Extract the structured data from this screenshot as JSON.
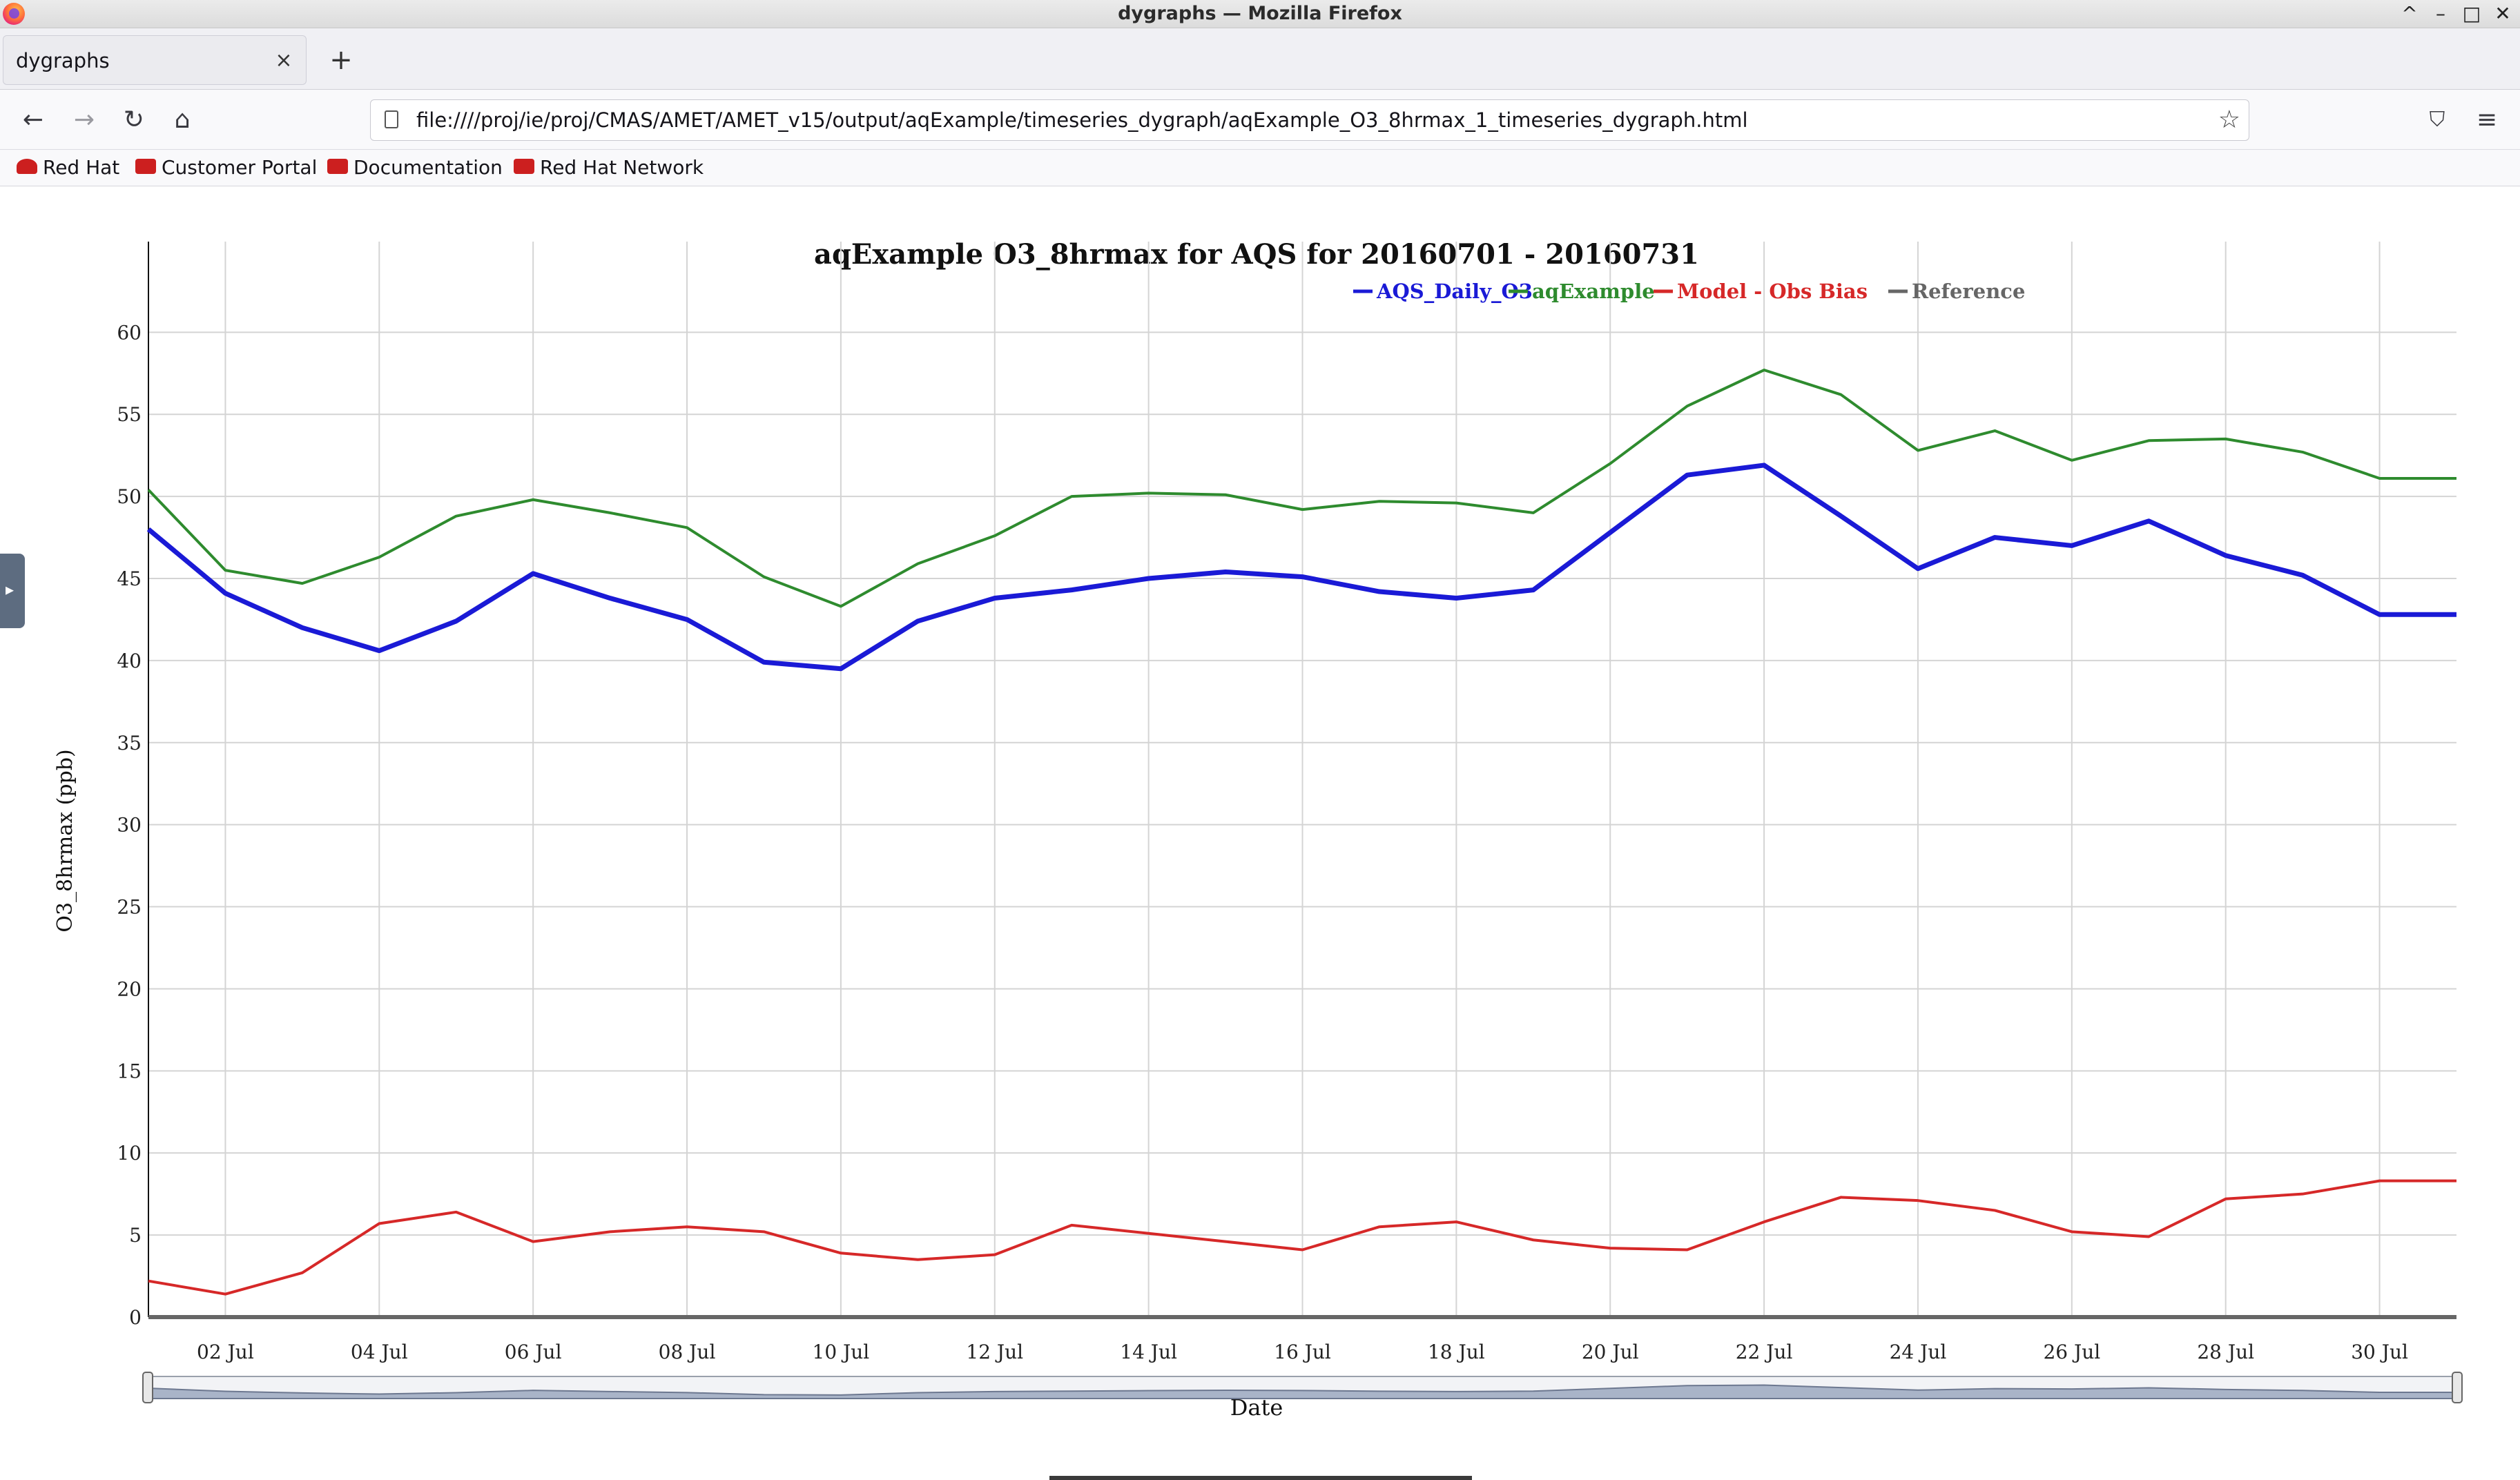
{
  "window": {
    "title": "dygraphs — Mozilla Firefox",
    "controls": [
      "^",
      "–",
      "□",
      "✕"
    ]
  },
  "tab": {
    "label": "dygraphs",
    "close": "×",
    "new_tab": "+"
  },
  "nav": {
    "back": "←",
    "forward": "→",
    "reload": "↻",
    "home": "⌂",
    "url": "file:////proj/ie/proj/CMAS/AMET/AMET_v15/output/aqExample/timeseries_dygraph/aqExample_O3_8hrmax_1_timeseries_dygraph.html",
    "star": "☆",
    "pocket": "⛉",
    "menu": "≡"
  },
  "bookmarks": [
    "Red Hat",
    "Customer Portal",
    "Documentation",
    "Red Hat Network"
  ],
  "icons": {
    "firefox": "firefox-logo-icon",
    "page": "page-icon",
    "bookmark": "red-hat-icon"
  },
  "colors": {
    "obs": "#1a1ad6",
    "model": "#2e8b2e",
    "bias": "#d62828",
    "reference": "#666666"
  },
  "chart_data": {
    "type": "line",
    "title": "aqExample O3_8hrmax for AQS for 20160701 - 20160731",
    "xlabel": "Date",
    "ylabel": "O3_8hrmax (ppb)",
    "ylim": [
      0,
      63
    ],
    "yticks": [
      0,
      5,
      10,
      15,
      20,
      25,
      30,
      35,
      40,
      45,
      50,
      55,
      60
    ],
    "x": [
      1,
      2,
      3,
      4,
      5,
      6,
      7,
      8,
      9,
      10,
      11,
      12,
      13,
      14,
      15,
      16,
      17,
      18,
      19,
      20,
      21,
      22,
      23,
      24,
      25,
      26,
      27,
      28,
      29,
      30,
      31
    ],
    "xticks": [
      {
        "day": 2,
        "label": "02 Jul"
      },
      {
        "day": 4,
        "label": "04 Jul"
      },
      {
        "day": 6,
        "label": "06 Jul"
      },
      {
        "day": 8,
        "label": "08 Jul"
      },
      {
        "day": 10,
        "label": "10 Jul"
      },
      {
        "day": 12,
        "label": "12 Jul"
      },
      {
        "day": 14,
        "label": "14 Jul"
      },
      {
        "day": 16,
        "label": "16 Jul"
      },
      {
        "day": 18,
        "label": "18 Jul"
      },
      {
        "day": 20,
        "label": "20 Jul"
      },
      {
        "day": 22,
        "label": "22 Jul"
      },
      {
        "day": 24,
        "label": "24 Jul"
      },
      {
        "day": 26,
        "label": "26 Jul"
      },
      {
        "day": 28,
        "label": "28 Jul"
      },
      {
        "day": 30,
        "label": "30 Jul"
      }
    ],
    "grid": true,
    "legend_position": "top",
    "series": [
      {
        "name": "AQS_Daily_O3",
        "color": "#1a1ad6",
        "values": [
          48.0,
          44.1,
          42.0,
          40.6,
          42.4,
          45.3,
          43.8,
          42.5,
          39.9,
          39.5,
          42.4,
          43.8,
          44.3,
          45.0,
          45.4,
          45.1,
          44.2,
          43.8,
          44.3,
          47.8,
          51.3,
          51.9,
          48.8,
          45.6,
          47.5,
          47.0,
          48.5,
          46.4,
          45.2,
          42.8,
          42.8
        ]
      },
      {
        "name": "aqExample",
        "color": "#2e8b2e",
        "values": [
          50.4,
          45.5,
          44.7,
          46.3,
          48.8,
          49.8,
          49.0,
          48.1,
          45.1,
          43.3,
          45.9,
          47.6,
          50.0,
          50.2,
          50.1,
          49.2,
          49.7,
          49.6,
          49.0,
          52.0,
          55.5,
          57.7,
          56.2,
          52.8,
          54.0,
          52.2,
          53.4,
          53.5,
          52.7,
          51.1,
          51.1
        ]
      },
      {
        "name": "Model - Obs Bias",
        "color": "#d62828",
        "values": [
          2.2,
          1.4,
          2.7,
          5.7,
          6.4,
          4.6,
          5.2,
          5.5,
          5.2,
          3.9,
          3.5,
          3.8,
          5.6,
          5.1,
          4.6,
          4.1,
          5.5,
          5.8,
          4.7,
          4.2,
          4.1,
          5.8,
          7.3,
          7.1,
          6.5,
          5.2,
          4.9,
          7.2,
          7.5,
          8.3,
          8.3
        ]
      },
      {
        "name": "Reference",
        "color": "#666666",
        "values": [
          0,
          0,
          0,
          0,
          0,
          0,
          0,
          0,
          0,
          0,
          0,
          0,
          0,
          0,
          0,
          0,
          0,
          0,
          0,
          0,
          0,
          0,
          0,
          0,
          0,
          0,
          0,
          0,
          0,
          0,
          0
        ]
      }
    ]
  }
}
